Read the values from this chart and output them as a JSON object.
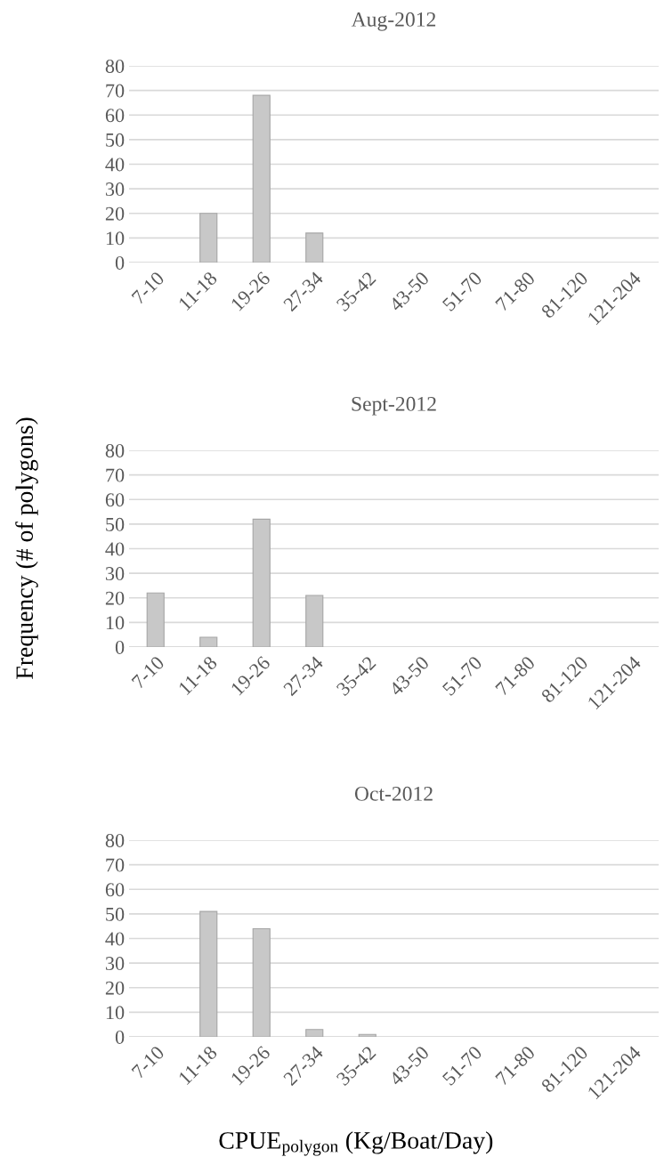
{
  "chart_data": [
    {
      "type": "bar",
      "title": "Aug-2012",
      "categories": [
        "7-10",
        "11-18",
        "19-26",
        "27-34",
        "35-42",
        "43-50",
        "51-70",
        "71-80",
        "81-120",
        "121-204"
      ],
      "values": [
        0,
        20,
        68,
        12,
        0,
        0,
        0,
        0,
        0,
        0
      ],
      "color": "#c8c8c8",
      "ylim": [
        0,
        80
      ],
      "yticks": [
        0,
        10,
        20,
        30,
        40,
        50,
        60,
        70,
        80
      ],
      "grid": "y"
    },
    {
      "type": "bar",
      "title": "Sept-2012",
      "ylabel": "Frequency (# of polygons)",
      "categories": [
        "7-10",
        "11-18",
        "19-26",
        "27-34",
        "35-42",
        "43-50",
        "51-70",
        "71-80",
        "81-120",
        "121-204"
      ],
      "values": [
        22,
        4,
        52,
        21,
        0,
        0,
        0,
        0,
        0,
        0
      ],
      "color": "#c8c8c8",
      "ylim": [
        0,
        80
      ],
      "yticks": [
        0,
        10,
        20,
        30,
        40,
        50,
        60,
        70,
        80
      ],
      "grid": "y"
    },
    {
      "type": "bar",
      "title": "Oct-2012",
      "xlabel": "CPUE$_{polygon}$ (Kg/Boat/Day)",
      "categories": [
        "7-10",
        "11-18",
        "19-26",
        "27-34",
        "35-42",
        "43-50",
        "51-70",
        "71-80",
        "81-120",
        "121-204"
      ],
      "values": [
        0,
        51,
        44,
        3,
        1,
        0,
        0,
        0,
        0,
        0
      ],
      "color": "#c8c8c8",
      "ylim": [
        0,
        80
      ],
      "yticks": [
        0,
        10,
        20,
        30,
        40,
        50,
        60,
        70,
        80
      ],
      "grid": "y"
    }
  ]
}
